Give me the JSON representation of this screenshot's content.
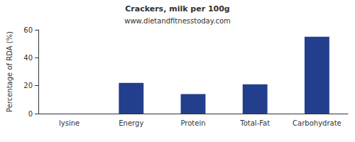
{
  "chart_data": {
    "type": "bar",
    "title": "Crackers, milk per 100g",
    "subtitle": "www.dietandfitnesstoday.com",
    "y_label": "Percentage of RDA (%)",
    "categories": [
      "lysine",
      "Energy",
      "Protein",
      "Total-Fat",
      "Carbohydrate"
    ],
    "values": [
      0,
      22,
      14,
      21,
      55
    ],
    "color": "#233e8c",
    "ylim": [
      0,
      60
    ],
    "yticks": [
      0,
      20,
      40,
      60
    ],
    "grid": false
  }
}
